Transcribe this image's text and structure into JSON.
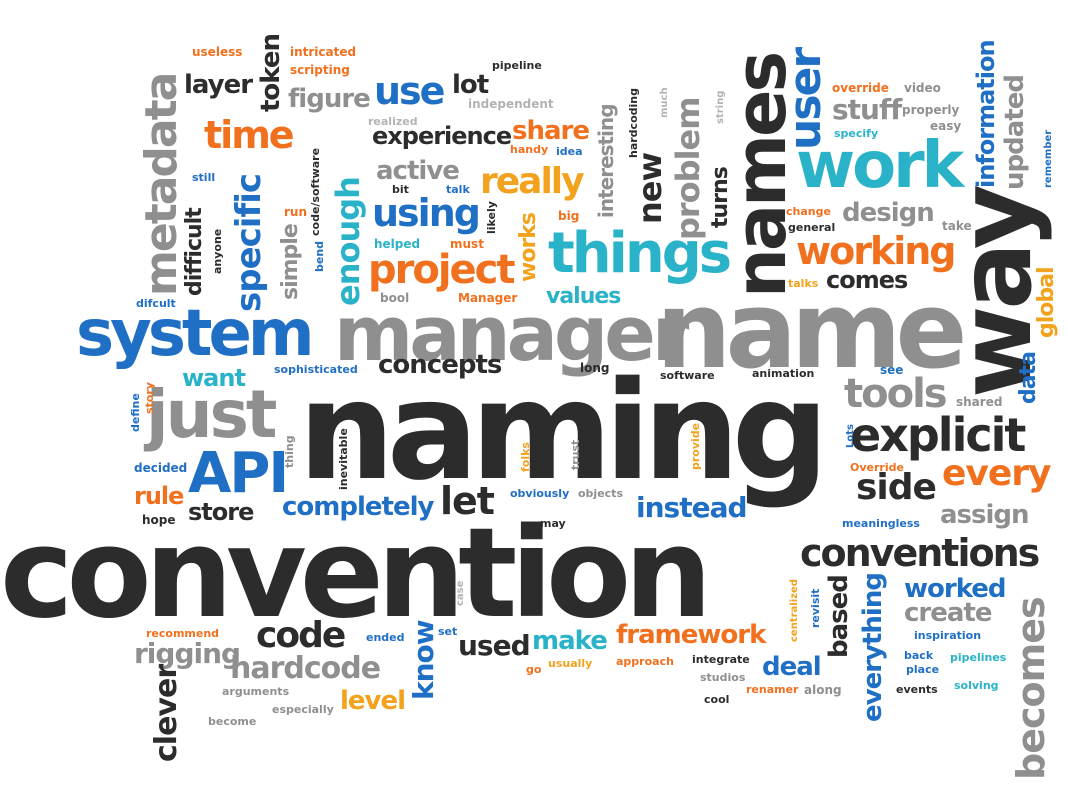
{
  "colors": {
    "dark": "#2c2c2c",
    "gray": "#8f8f8f",
    "light_gray": "#b3b3b3",
    "blue": "#1f6fc5",
    "teal": "#2ab3c8",
    "orange": "#f0701e",
    "amber": "#f2a21c"
  },
  "words": [
    {
      "text": "convention",
      "color": "dark"
    },
    {
      "text": "naming",
      "color": "dark"
    },
    {
      "text": "name",
      "color": "gray"
    },
    {
      "text": "way",
      "color": "dark"
    },
    {
      "text": "names",
      "color": "dark"
    },
    {
      "text": "manager",
      "color": "gray"
    },
    {
      "text": "system",
      "color": "blue"
    },
    {
      "text": "work",
      "color": "teal"
    },
    {
      "text": "things",
      "color": "teal"
    },
    {
      "text": "just",
      "color": "gray"
    },
    {
      "text": "explicit",
      "color": "dark"
    },
    {
      "text": "conventions",
      "color": "dark"
    },
    {
      "text": "API",
      "color": "blue"
    },
    {
      "text": "tools",
      "color": "gray"
    },
    {
      "text": "project",
      "color": "orange"
    },
    {
      "text": "working",
      "color": "orange"
    },
    {
      "text": "side",
      "color": "dark"
    },
    {
      "text": "every",
      "color": "orange"
    },
    {
      "text": "metadata",
      "color": "gray"
    },
    {
      "text": "user",
      "color": "blue"
    },
    {
      "text": "specific",
      "color": "blue"
    },
    {
      "text": "enough",
      "color": "teal"
    },
    {
      "text": "time",
      "color": "orange"
    },
    {
      "text": "use",
      "color": "blue"
    },
    {
      "text": "really",
      "color": "amber"
    },
    {
      "text": "using",
      "color": "blue"
    },
    {
      "text": "concepts",
      "color": "dark"
    },
    {
      "text": "let",
      "color": "dark"
    },
    {
      "text": "code",
      "color": "dark"
    },
    {
      "text": "framework",
      "color": "orange"
    },
    {
      "text": "completely",
      "color": "blue"
    },
    {
      "text": "instead",
      "color": "blue"
    },
    {
      "text": "worked",
      "color": "blue"
    },
    {
      "text": "create",
      "color": "gray"
    },
    {
      "text": "assign",
      "color": "gray"
    },
    {
      "text": "becomes",
      "color": "gray"
    },
    {
      "text": "everything",
      "color": "blue"
    },
    {
      "text": "based",
      "color": "dark"
    },
    {
      "text": "deal",
      "color": "blue"
    },
    {
      "text": "make",
      "color": "teal"
    },
    {
      "text": "used",
      "color": "dark"
    },
    {
      "text": "know",
      "color": "blue"
    },
    {
      "text": "rigging",
      "color": "gray"
    },
    {
      "text": "hardcode",
      "color": "gray"
    },
    {
      "text": "clever",
      "color": "dark"
    },
    {
      "text": "level",
      "color": "amber"
    },
    {
      "text": "store",
      "color": "dark"
    },
    {
      "text": "rule",
      "color": "orange"
    },
    {
      "text": "want",
      "color": "teal"
    },
    {
      "text": "design",
      "color": "gray"
    },
    {
      "text": "comes",
      "color": "dark"
    },
    {
      "text": "stuff",
      "color": "gray"
    },
    {
      "text": "experience",
      "color": "dark"
    },
    {
      "text": "share",
      "color": "orange"
    },
    {
      "text": "active",
      "color": "gray"
    },
    {
      "text": "figure",
      "color": "gray"
    },
    {
      "text": "layer",
      "color": "dark"
    },
    {
      "text": "token",
      "color": "dark"
    },
    {
      "text": "lot",
      "color": "dark"
    },
    {
      "text": "values",
      "color": "teal"
    },
    {
      "text": "new",
      "color": "dark"
    },
    {
      "text": "problem",
      "color": "gray"
    },
    {
      "text": "interesting",
      "color": "gray"
    },
    {
      "text": "turns",
      "color": "dark"
    },
    {
      "text": "works",
      "color": "amber"
    },
    {
      "text": "difficult",
      "color": "dark"
    },
    {
      "text": "simple",
      "color": "gray"
    },
    {
      "text": "information",
      "color": "blue"
    },
    {
      "text": "updated",
      "color": "gray"
    },
    {
      "text": "data",
      "color": "blue"
    },
    {
      "text": "global",
      "color": "amber"
    },
    {
      "text": "useless",
      "color": "orange"
    },
    {
      "text": "intricated",
      "color": "orange"
    },
    {
      "text": "scripting",
      "color": "orange"
    },
    {
      "text": "pipeline",
      "color": "dark"
    },
    {
      "text": "independent",
      "color": "light_gray"
    },
    {
      "text": "realized",
      "color": "light_gray"
    },
    {
      "text": "handy",
      "color": "orange"
    },
    {
      "text": "idea",
      "color": "blue"
    },
    {
      "text": "bit",
      "color": "dark"
    },
    {
      "text": "talk",
      "color": "blue"
    },
    {
      "text": "still",
      "color": "blue"
    },
    {
      "text": "run",
      "color": "orange"
    },
    {
      "text": "helped",
      "color": "teal"
    },
    {
      "text": "must",
      "color": "orange"
    },
    {
      "text": "big",
      "color": "orange"
    },
    {
      "text": "bool",
      "color": "gray"
    },
    {
      "text": "Manager",
      "color": "orange"
    },
    {
      "text": "long",
      "color": "dark"
    },
    {
      "text": "software",
      "color": "dark"
    },
    {
      "text": "animation",
      "color": "dark"
    },
    {
      "text": "see",
      "color": "blue"
    },
    {
      "text": "shared",
      "color": "gray"
    },
    {
      "text": "sophisticated",
      "color": "blue"
    },
    {
      "text": "override",
      "color": "orange"
    },
    {
      "text": "video",
      "color": "gray"
    },
    {
      "text": "properly",
      "color": "gray"
    },
    {
      "text": "easy",
      "color": "gray"
    },
    {
      "text": "specify",
      "color": "teal"
    },
    {
      "text": "change",
      "color": "orange"
    },
    {
      "text": "general",
      "color": "dark"
    },
    {
      "text": "take",
      "color": "gray"
    },
    {
      "text": "talks",
      "color": "amber"
    },
    {
      "text": "remember",
      "color": "blue"
    },
    {
      "text": "much",
      "color": "light_gray"
    },
    {
      "text": "string",
      "color": "light_gray"
    },
    {
      "text": "hardcoding",
      "color": "dark"
    },
    {
      "text": "code/software",
      "color": "dark"
    },
    {
      "text": "likely",
      "color": "dark"
    },
    {
      "text": "anyone",
      "color": "dark"
    },
    {
      "text": "bend",
      "color": "blue"
    },
    {
      "text": "difcult",
      "color": "blue"
    },
    {
      "text": "define",
      "color": "blue"
    },
    {
      "text": "story",
      "color": "orange"
    },
    {
      "text": "decided",
      "color": "blue"
    },
    {
      "text": "hope",
      "color": "dark"
    },
    {
      "text": "thing",
      "color": "gray"
    },
    {
      "text": "inevitable",
      "color": "dark"
    },
    {
      "text": "folks",
      "color": "amber"
    },
    {
      "text": "trust",
      "color": "gray"
    },
    {
      "text": "provide",
      "color": "amber"
    },
    {
      "text": "obviously",
      "color": "blue"
    },
    {
      "text": "objects",
      "color": "gray"
    },
    {
      "text": "may",
      "color": "dark"
    },
    {
      "text": "Lots",
      "color": "blue"
    },
    {
      "text": "Override",
      "color": "orange"
    },
    {
      "text": "meaningless",
      "color": "blue"
    },
    {
      "text": "case",
      "color": "light_gray"
    },
    {
      "text": "set",
      "color": "blue"
    },
    {
      "text": "recommend",
      "color": "orange"
    },
    {
      "text": "ended",
      "color": "blue"
    },
    {
      "text": "go",
      "color": "orange"
    },
    {
      "text": "usually",
      "color": "amber"
    },
    {
      "text": "approach",
      "color": "orange"
    },
    {
      "text": "integrate",
      "color": "dark"
    },
    {
      "text": "studios",
      "color": "gray"
    },
    {
      "text": "cool",
      "color": "dark"
    },
    {
      "text": "renamer",
      "color": "orange"
    },
    {
      "text": "along",
      "color": "gray"
    },
    {
      "text": "centralized",
      "color": "amber"
    },
    {
      "text": "revisit",
      "color": "blue"
    },
    {
      "text": "inspiration",
      "color": "blue"
    },
    {
      "text": "back",
      "color": "blue"
    },
    {
      "text": "place",
      "color": "blue"
    },
    {
      "text": "pipelines",
      "color": "teal"
    },
    {
      "text": "events",
      "color": "dark"
    },
    {
      "text": "solving",
      "color": "teal"
    },
    {
      "text": "arguments",
      "color": "gray"
    },
    {
      "text": "become",
      "color": "gray"
    },
    {
      "text": "especially",
      "color": "gray"
    }
  ]
}
